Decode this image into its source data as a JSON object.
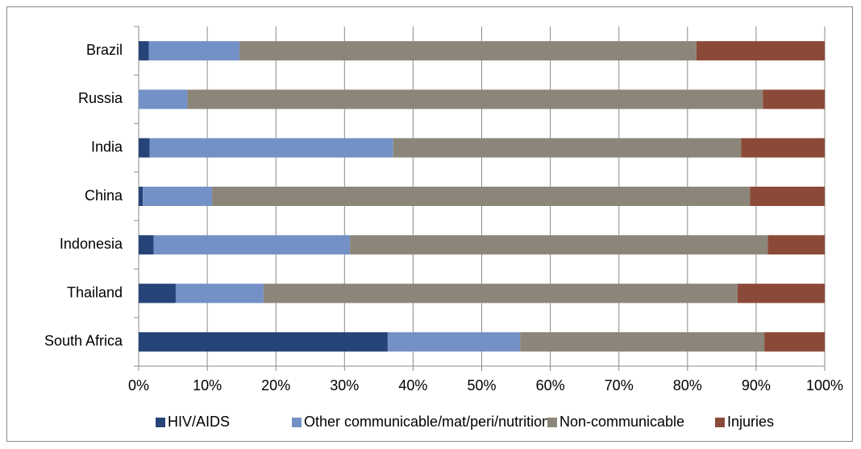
{
  "chart_data": {
    "type": "stacked-barh",
    "categories": [
      "Brazil",
      "Russia",
      "India",
      "China",
      "Indonesia",
      "Thailand",
      "South Africa"
    ],
    "series": [
      {
        "name": "HIV/AIDS",
        "color": "#264478",
        "values": [
          1.5,
          0,
          1.6,
          0.6,
          2.2,
          5.4,
          36.3
        ]
      },
      {
        "name": "Other communicable/mat/peri/nutrition",
        "color": "#7491c7",
        "values": [
          13.2,
          7.1,
          35.5,
          10.1,
          28.6,
          12.8,
          19.3
        ]
      },
      {
        "name": "Non-communicable",
        "color": "#8c8579",
        "values": [
          66.6,
          83.9,
          50.7,
          78.4,
          60.9,
          69.1,
          35.6
        ]
      },
      {
        "name": "Injuries",
        "color": "#8b4a38",
        "values": [
          18.7,
          9.0,
          12.2,
          10.9,
          8.3,
          12.7,
          8.8
        ]
      }
    ],
    "xlim": [
      0,
      100
    ],
    "xticks": [
      {
        "value": 0,
        "label": "0%"
      },
      {
        "value": 10,
        "label": "10%"
      },
      {
        "value": 20,
        "label": "20%"
      },
      {
        "value": 30,
        "label": "30%"
      },
      {
        "value": 40,
        "label": "40%"
      },
      {
        "value": 50,
        "label": "50%"
      },
      {
        "value": 60,
        "label": "60%"
      },
      {
        "value": 70,
        "label": "70%"
      },
      {
        "value": 80,
        "label": "80%"
      },
      {
        "value": 90,
        "label": "90%"
      },
      {
        "value": 100,
        "label": "100%"
      }
    ],
    "grid": true,
    "legend": "bottom"
  }
}
